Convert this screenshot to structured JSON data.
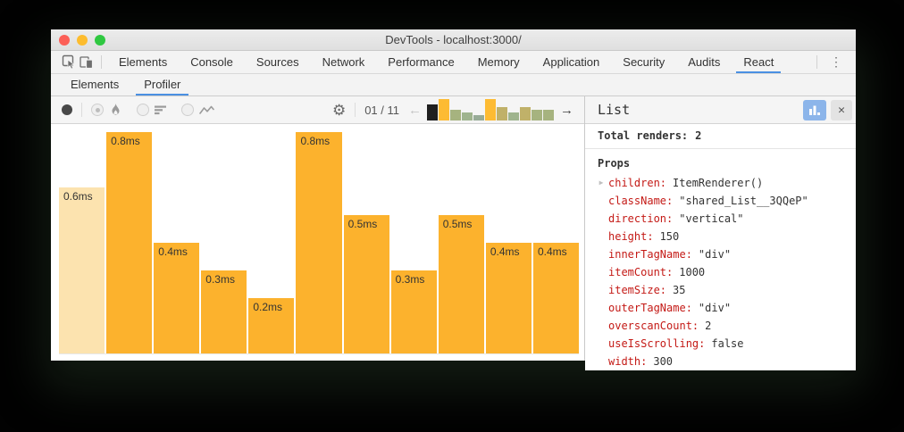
{
  "window": {
    "title": "DevTools - localhost:3000/"
  },
  "tabs": {
    "main": [
      {
        "label": "Elements"
      },
      {
        "label": "Console"
      },
      {
        "label": "Sources"
      },
      {
        "label": "Network"
      },
      {
        "label": "Performance"
      },
      {
        "label": "Memory"
      },
      {
        "label": "Application"
      },
      {
        "label": "Security"
      },
      {
        "label": "Audits"
      },
      {
        "label": "React",
        "active": true
      }
    ],
    "panel": [
      {
        "label": "Elements"
      },
      {
        "label": "Profiler",
        "active": true
      }
    ]
  },
  "icons": {
    "more_menu": "⋮",
    "gear": "⚙",
    "prev_arrow": "←",
    "next_arrow": "→",
    "close": "✕",
    "expander": "▶"
  },
  "toolbar": {
    "commit_counter": "01 / 11"
  },
  "chart_data": {
    "type": "bar",
    "title": "",
    "xlabel": "",
    "ylabel": "",
    "unit": "ms",
    "values": [
      0.6,
      0.8,
      0.4,
      0.3,
      0.2,
      0.8,
      0.5,
      0.3,
      0.5,
      0.4,
      0.4
    ],
    "labels": [
      "0.6ms",
      "0.8ms",
      "0.4ms",
      "0.3ms",
      "0.2ms",
      "0.8ms",
      "0.5ms",
      "0.3ms",
      "0.5ms",
      "0.4ms",
      "0.4ms"
    ],
    "ylim": [
      0,
      0.81
    ],
    "selected_index": 0,
    "bar_color": "#fcb22d",
    "selected_bar_color": "#fce3af",
    "label_color": "#333333"
  },
  "minimap": {
    "values": [
      0.6,
      0.8,
      0.4,
      0.3,
      0.2,
      0.8,
      0.5,
      0.3,
      0.5,
      0.4,
      0.4
    ],
    "selected_index": 0,
    "max": 0.8,
    "colors": {
      "selected": "#1f1f1f",
      "0.8": "#fdbb33",
      "0.6": "#bbb26b",
      "0.5": "#c0b169",
      "0.4": "#a6b37f",
      "0.3": "#9fb48e",
      "0.2": "#97ab97"
    }
  },
  "sidebar": {
    "title": "List",
    "total_renders_label": "Total renders:",
    "total_renders_value": "2",
    "props_label": "Props",
    "props": [
      {
        "name": "children",
        "value": "ItemRenderer()",
        "expandable": true
      },
      {
        "name": "className",
        "value": "\"shared_List__3QQeP\""
      },
      {
        "name": "direction",
        "value": "\"vertical\""
      },
      {
        "name": "height",
        "value": "150"
      },
      {
        "name": "innerTagName",
        "value": "\"div\""
      },
      {
        "name": "itemCount",
        "value": "1000"
      },
      {
        "name": "itemSize",
        "value": "35"
      },
      {
        "name": "outerTagName",
        "value": "\"div\""
      },
      {
        "name": "overscanCount",
        "value": "2"
      },
      {
        "name": "useIsScrolling",
        "value": "false"
      },
      {
        "name": "width",
        "value": "300"
      }
    ]
  },
  "colors": {
    "accent_blue": "#4a90e2",
    "prop_name_red": "#c41a16",
    "toolbar_bg": "#f5f5f5"
  }
}
